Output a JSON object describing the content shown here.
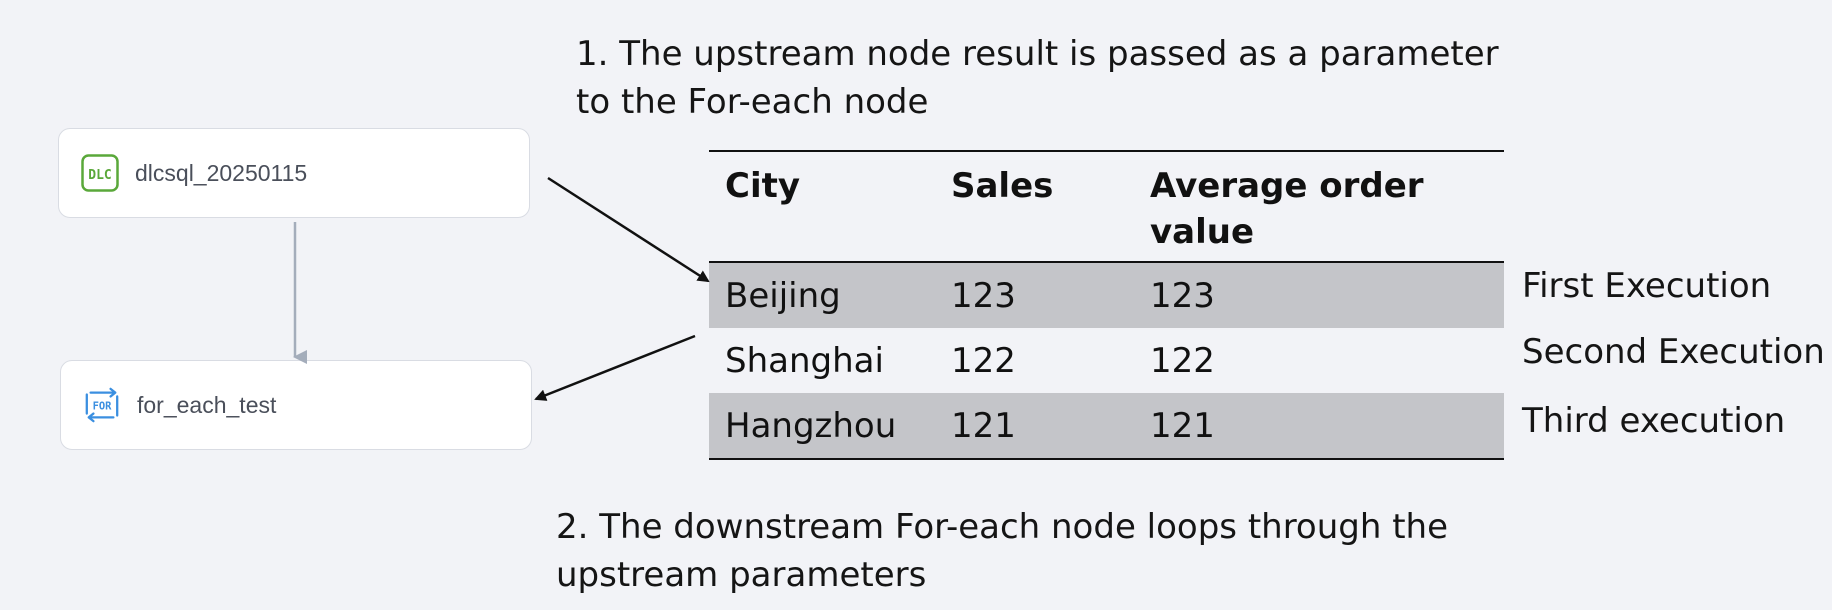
{
  "nodes": {
    "upstream": {
      "icon": "dlc-icon",
      "icon_text": "DLC",
      "label": "dlcsql_20250115",
      "icon_color": "#5aa83a"
    },
    "downstream": {
      "icon": "for-loop-icon",
      "icon_text": "FOR",
      "label": "for_each_test",
      "icon_color": "#3b8fe0"
    }
  },
  "captions": {
    "step1": "1. The upstream node result is passed as a parameter to the For-each node",
    "step2": "2. The downstream For-each node loops through the upstream parameters"
  },
  "table": {
    "headers": [
      "City",
      "Sales",
      "Average order value"
    ],
    "rows": [
      {
        "city": "Beijing",
        "sales": "123",
        "aov": "123",
        "execution": "First Execution"
      },
      {
        "city": "Shanghai",
        "sales": "122",
        "aov": "122",
        "execution": "Second Execution"
      },
      {
        "city": "Hangzhou",
        "sales": "121",
        "aov": "121",
        "execution": "Third execution"
      }
    ],
    "shaded_color": "#c4c5c9"
  },
  "colors": {
    "background": "#f2f3f7",
    "connector": "#a4adbb",
    "arrow": "#111111"
  }
}
